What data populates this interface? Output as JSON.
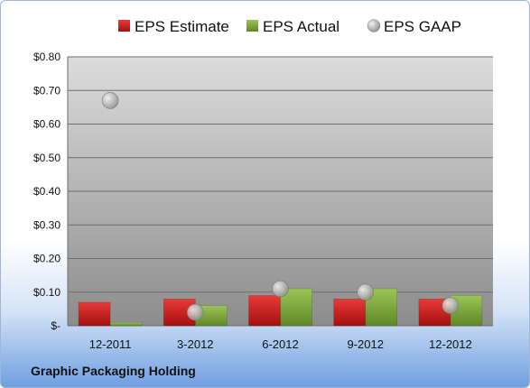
{
  "chart_data": {
    "type": "bar",
    "categories": [
      "12-2011",
      "3-2012",
      "6-2012",
      "9-2012",
      "12-2012"
    ],
    "series": [
      {
        "name": "EPS Estimate",
        "kind": "bar",
        "color": "#cc1f1f",
        "values": [
          0.07,
          0.08,
          0.09,
          0.08,
          0.08
        ]
      },
      {
        "name": "EPS Actual",
        "kind": "bar",
        "color": "#7fa83a",
        "values": [
          0.01,
          0.06,
          0.11,
          0.11,
          0.09
        ]
      },
      {
        "name": "EPS GAAP",
        "kind": "scatter",
        "color": "#b8b8b8",
        "values": [
          0.67,
          0.04,
          0.11,
          0.1,
          0.06
        ]
      }
    ],
    "ylim": [
      0,
      0.8
    ],
    "y_ticks": [
      {
        "value": 0.8,
        "label": "$0.80"
      },
      {
        "value": 0.7,
        "label": "$0.70"
      },
      {
        "value": 0.6,
        "label": "$0.60"
      },
      {
        "value": 0.5,
        "label": "$0.50"
      },
      {
        "value": 0.4,
        "label": "$0.40"
      },
      {
        "value": 0.3,
        "label": "$0.30"
      },
      {
        "value": 0.2,
        "label": "$0.20"
      },
      {
        "value": 0.1,
        "label": "$0.10"
      },
      {
        "value": 0.0,
        "label": "$-"
      }
    ],
    "grid": true,
    "legend_position": "top"
  },
  "footer": {
    "company": "Graphic Packaging Holding"
  }
}
